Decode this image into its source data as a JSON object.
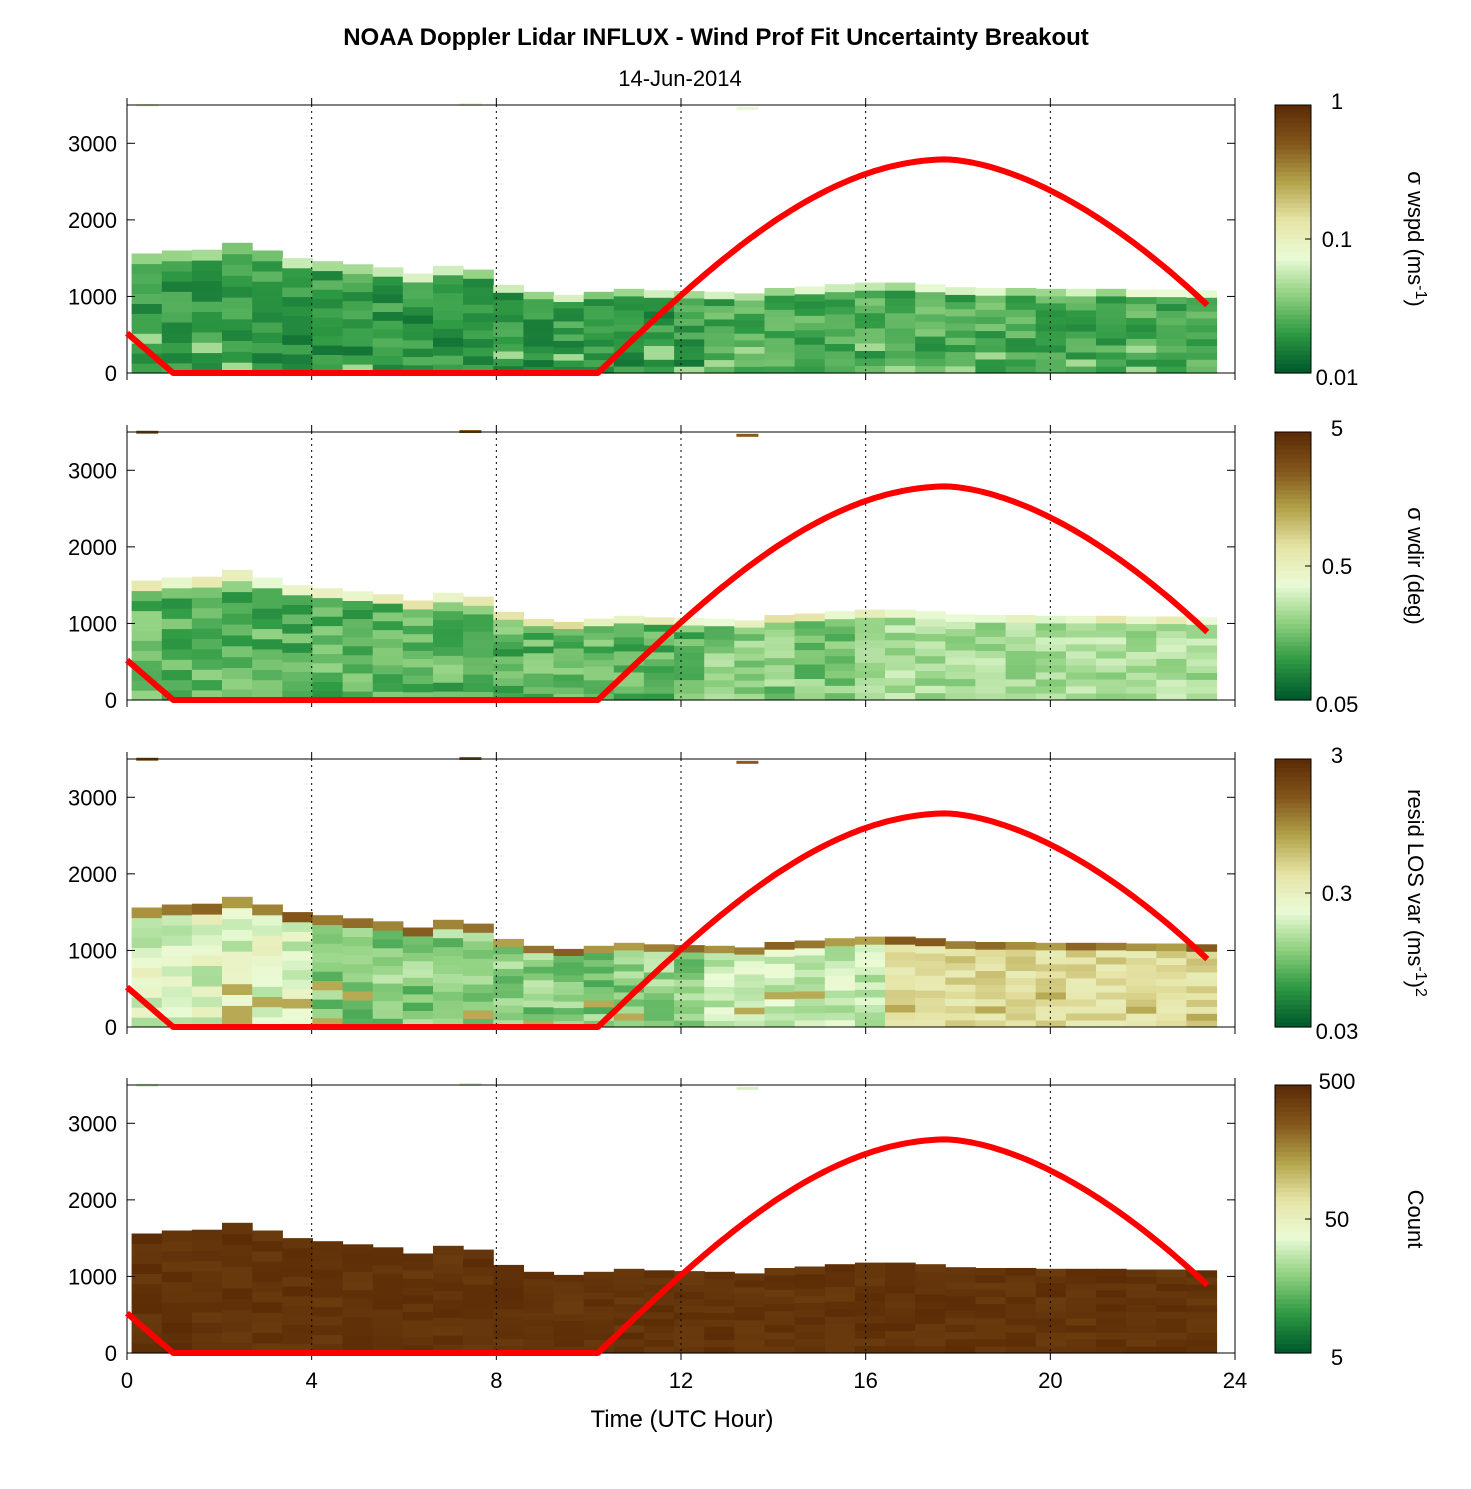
{
  "title": "NOAA Doppler Lidar INFLUX - Wind Prof Fit Uncertainty Breakout",
  "subtitle": "14-Jun-2014",
  "xlabel": "Time (UTC Hour)",
  "colors": {
    "sun_curve": "#ff0000",
    "cmap": [
      "#005a2c",
      "#2f9a44",
      "#8fd080",
      "#eafbd6",
      "#e6e4a6",
      "#b3a44b",
      "#84581c",
      "#5c2c06"
    ]
  },
  "chart_data": [
    {
      "type": "heatmap",
      "ylabel": "",
      "xlim": [
        0,
        24
      ],
      "ylim": [
        0,
        3500
      ],
      "xticks": [
        "0",
        "4",
        "8",
        "12",
        "16",
        "20",
        "24"
      ],
      "yticks": [
        "0",
        "1000",
        "2000",
        "3000"
      ],
      "colorbar": {
        "label": "σ wspd (ms",
        "label_sup": "-1",
        "label_end": ")",
        "scale": "log",
        "ticks": [
          "0.01",
          "0.1",
          "1"
        ]
      },
      "profile_top_m": [
        1560,
        1600,
        1610,
        1700,
        1600,
        1500,
        1460,
        1420,
        1380,
        1300,
        1400,
        1350,
        1150,
        1060,
        1020,
        1060,
        1100,
        1080,
        1070,
        1060,
        1040,
        1110,
        1130,
        1160,
        1180,
        1180,
        1160,
        1120,
        1110,
        1110,
        1100,
        1100,
        1100,
        1090,
        1090,
        1080
      ],
      "level": "low (~0.01-0.05)"
    },
    {
      "type": "heatmap",
      "ylabel": "",
      "xlim": [
        0,
        24
      ],
      "ylim": [
        0,
        3500
      ],
      "xticks": [
        "0",
        "4",
        "8",
        "12",
        "16",
        "20",
        "24"
      ],
      "yticks": [
        "0",
        "1000",
        "2000",
        "3000"
      ],
      "colorbar": {
        "label": "σ wdir (deg)",
        "scale": "log",
        "ticks": [
          "0.05",
          "0.5",
          "5"
        ]
      },
      "level": "~0.05-0.5"
    },
    {
      "type": "heatmap",
      "ylabel": "",
      "xlim": [
        0,
        24
      ],
      "ylim": [
        0,
        3500
      ],
      "xticks": [
        "0",
        "4",
        "8",
        "12",
        "16",
        "20",
        "24"
      ],
      "yticks": [
        "0",
        "1000",
        "2000",
        "3000"
      ],
      "colorbar": {
        "label": "resid LOS var (ms",
        "label_sup": "-1",
        "label_end": ")",
        "label_sup2": "2",
        "scale": "log",
        "ticks": [
          "0.03",
          "0.3",
          "3"
        ]
      },
      "level": "~0.1-1"
    },
    {
      "type": "heatmap",
      "ylabel": "",
      "xlim": [
        0,
        24
      ],
      "ylim": [
        0,
        3500
      ],
      "xticks": [
        "0",
        "4",
        "8",
        "12",
        "16",
        "20",
        "24"
      ],
      "yticks": [
        "0",
        "1000",
        "2000",
        "3000"
      ],
      "colorbar": {
        "label": "Count",
        "scale": "log",
        "ticks": [
          "5",
          "50",
          "500"
        ]
      },
      "level": "~500"
    }
  ],
  "sun_elevation_curve": {
    "x": [
      0,
      1,
      10.2,
      10.6,
      12,
      14,
      16,
      17.7,
      19,
      21,
      23.5
    ],
    "y": [
      520,
      0,
      0,
      100,
      900,
      2000,
      2600,
      2790,
      2700,
      2250,
      830
    ]
  }
}
